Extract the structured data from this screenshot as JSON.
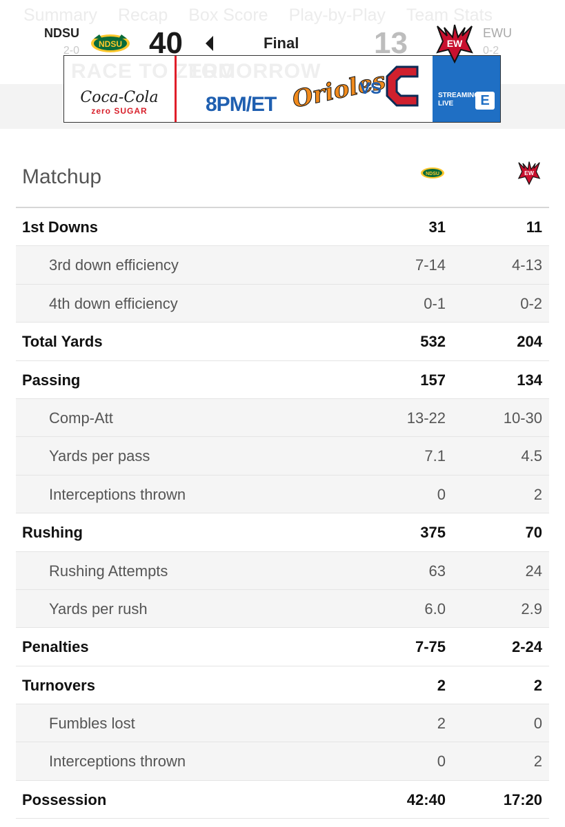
{
  "tabs": [
    "Summary",
    "Recap",
    "Box Score",
    "Play-by-Play",
    "Team Stats"
  ],
  "scoreboard": {
    "home": {
      "abbr": "NDSU",
      "record": "2-0",
      "score": "40",
      "logo_text": "NDSU",
      "color": "#0a6b3a"
    },
    "away": {
      "abbr": "EWU",
      "record": "0-2",
      "score": "13",
      "logo_text": "EW",
      "color": "#c8102e"
    },
    "status": "Final"
  },
  "ad": {
    "top_text": "RACE TO ZERO",
    "top_text_2": "TOMORROW",
    "sponsor": "Coca-Cola",
    "sponsor_sub": "zero SUGAR",
    "time": "8PM/ET",
    "team1": "Orioles",
    "vs": "VS",
    "stream_label_1": "STREAMING",
    "stream_label_2": "LIVE",
    "stream_logo": "E"
  },
  "matchup": {
    "title": "Matchup",
    "rows": [
      {
        "label": "1st Downs",
        "home": "31",
        "away": "11",
        "type": "main"
      },
      {
        "label": "3rd down efficiency",
        "home": "7-14",
        "away": "4-13",
        "type": "sub"
      },
      {
        "label": "4th down efficiency",
        "home": "0-1",
        "away": "0-2",
        "type": "sub"
      },
      {
        "label": "Total Yards",
        "home": "532",
        "away": "204",
        "type": "main"
      },
      {
        "label": "Passing",
        "home": "157",
        "away": "134",
        "type": "main"
      },
      {
        "label": "Comp-Att",
        "home": "13-22",
        "away": "10-30",
        "type": "sub"
      },
      {
        "label": "Yards per pass",
        "home": "7.1",
        "away": "4.5",
        "type": "sub"
      },
      {
        "label": "Interceptions thrown",
        "home": "0",
        "away": "2",
        "type": "sub"
      },
      {
        "label": "Rushing",
        "home": "375",
        "away": "70",
        "type": "main"
      },
      {
        "label": "Rushing Attempts",
        "home": "63",
        "away": "24",
        "type": "sub"
      },
      {
        "label": "Yards per rush",
        "home": "6.0",
        "away": "2.9",
        "type": "sub"
      },
      {
        "label": "Penalties",
        "home": "7-75",
        "away": "2-24",
        "type": "main"
      },
      {
        "label": "Turnovers",
        "home": "2",
        "away": "2",
        "type": "main"
      },
      {
        "label": "Fumbles lost",
        "home": "2",
        "away": "0",
        "type": "sub"
      },
      {
        "label": "Interceptions thrown",
        "home": "0",
        "away": "2",
        "type": "sub"
      },
      {
        "label": "Possession",
        "home": "42:40",
        "away": "17:20",
        "type": "main"
      }
    ]
  }
}
